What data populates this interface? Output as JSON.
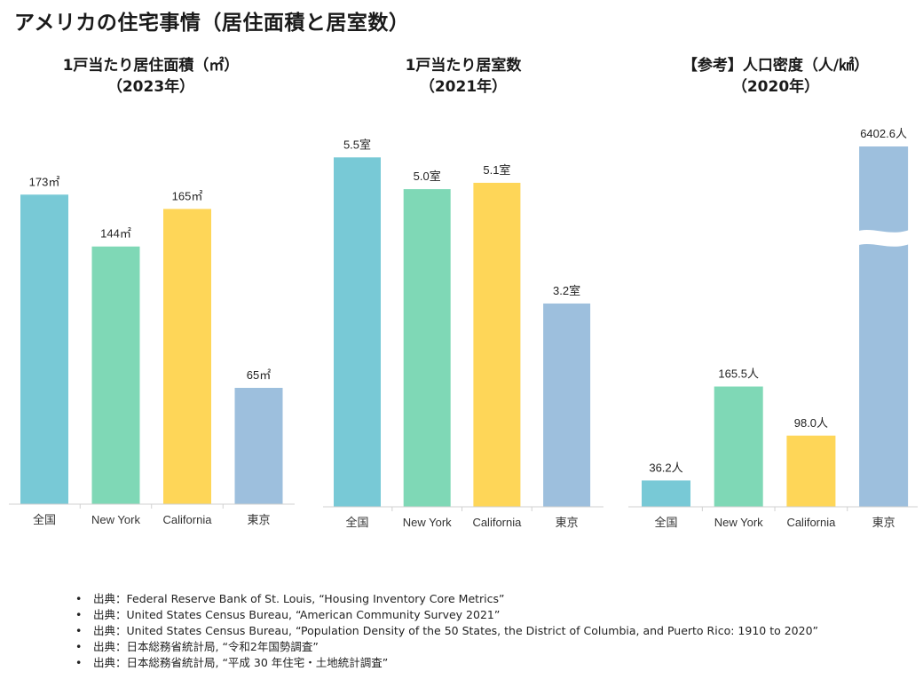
{
  "page": {
    "title": "アメリカの住宅事情（居住面積と居室数）"
  },
  "chart_data": [
    {
      "type": "bar",
      "title_line1": "1戸当たり居住面積（㎡）",
      "title_line2": "（2023年）",
      "categories": [
        "全国",
        "New York",
        "California",
        "東京"
      ],
      "values": [
        173,
        144,
        165,
        65
      ],
      "value_labels": [
        "173㎡",
        "144㎡",
        "165㎡",
        "65㎡"
      ],
      "colors": [
        "#78C9D6",
        "#7FD8B6",
        "#FED658",
        "#9DBFDD"
      ],
      "ylim": [
        0,
        190
      ],
      "axis_break": false
    },
    {
      "type": "bar",
      "title_line1": "1戸当たり居室数",
      "title_line2": "（2021年）",
      "categories": [
        "全国",
        "New York",
        "California",
        "東京"
      ],
      "values": [
        5.5,
        5.0,
        5.1,
        3.2
      ],
      "value_labels": [
        "5.5室",
        "5.0室",
        "5.1室",
        "3.2室"
      ],
      "colors": [
        "#78C9D6",
        "#7FD8B6",
        "#FED658",
        "#9DBFDD"
      ],
      "ylim": [
        0,
        5.7
      ],
      "axis_break": false
    },
    {
      "type": "bar",
      "title_line1": "【参考】人口密度（人/㎢）",
      "title_line2": "（2020年）",
      "categories": [
        "全国",
        "New York",
        "California",
        "東京"
      ],
      "values": [
        36.2,
        165.5,
        98.0,
        6402.6
      ],
      "value_labels": [
        "36.2人",
        "165.5人",
        "98.0人",
        "6402.6人"
      ],
      "colors": [
        "#78C9D6",
        "#7FD8B6",
        "#FED658",
        "#9DBFDD"
      ],
      "ylim": [
        0,
        160
      ],
      "axis_break": true,
      "break_bar_index": 3
    }
  ],
  "sources": [
    "出典：Federal Reserve Bank of St. Louis, “Housing Inventory Core Metrics”",
    "出典：United States Census Bureau, “American Community Survey 2021”",
    "出典：United States Census Bureau, “Population Density of the 50 States, the District of Columbia, and Puerto Rico: 1910 to 2020”",
    "出典：日本総務省統計局, “令和2年国勢調査”",
    "出典：日本総務省統計局, “平成 30 年住宅・土地統計調査”"
  ]
}
